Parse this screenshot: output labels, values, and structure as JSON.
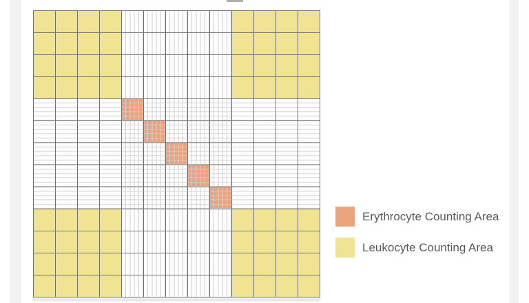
{
  "page": {
    "background": "#ffffff",
    "left_margin_strip_color": "#f1f1f2",
    "right_margin_strip_color": "#f2f2f3"
  },
  "diagram": {
    "title": "hemocytometer-counting-chamber-grid",
    "grid_size": 13,
    "corner_block_size": 4,
    "center_block_size": 5,
    "fine_divisions_per_cell": 5,
    "major_line_color": "#707070",
    "fine_line_color": "#cfcfcf",
    "cell_background": "#fdfdfd",
    "leukocyte_color": "#f0e493",
    "erythrocyte_color": "#eba37e",
    "erythrocyte_cells_row_col": [
      [
        5,
        5
      ],
      [
        6,
        6
      ],
      [
        7,
        7
      ],
      [
        8,
        8
      ],
      [
        9,
        9
      ]
    ]
  },
  "legend": {
    "text_color": "#58595b",
    "items": [
      {
        "id": "erythrocyte",
        "label": "Erythrocyte Counting Area",
        "color": "#eba37e"
      },
      {
        "id": "leukocyte",
        "label": "Leukocyte Counting Area",
        "color": "#f0e493"
      }
    ]
  }
}
